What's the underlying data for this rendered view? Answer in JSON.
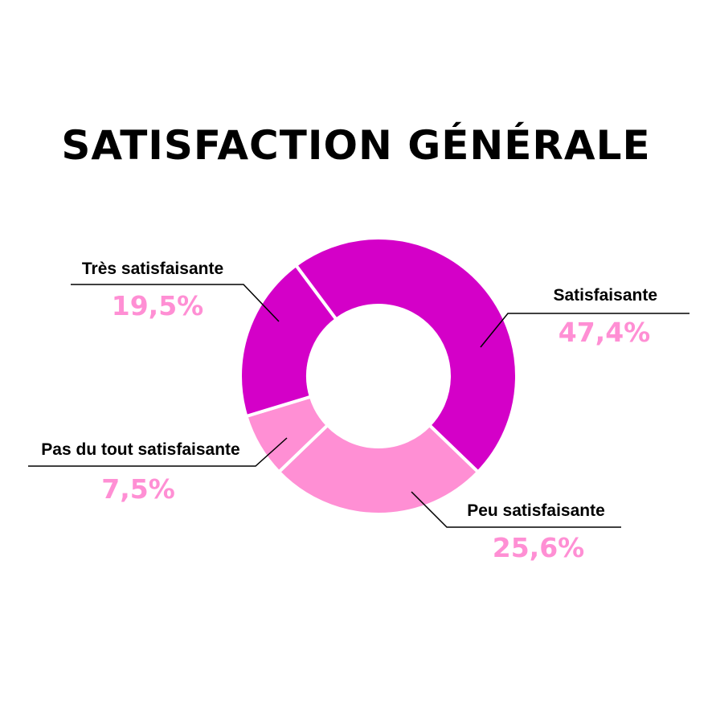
{
  "chart_data": {
    "type": "donut",
    "title": "SATISFACTION GÉNÉRALE",
    "categories": [
      "Satisfaisante",
      "Peu satisfaisante",
      "Pas du tout satisfaisante",
      "Très satisfaisante"
    ],
    "values": [
      47.4,
      25.6,
      7.5,
      19.5
    ],
    "value_labels": [
      "47,4%",
      "25,6%",
      "7,5%",
      "19,5%"
    ],
    "colors": [
      "#d400c8",
      "#ff8fd4",
      "#ff8fd4",
      "#d400c8"
    ]
  }
}
